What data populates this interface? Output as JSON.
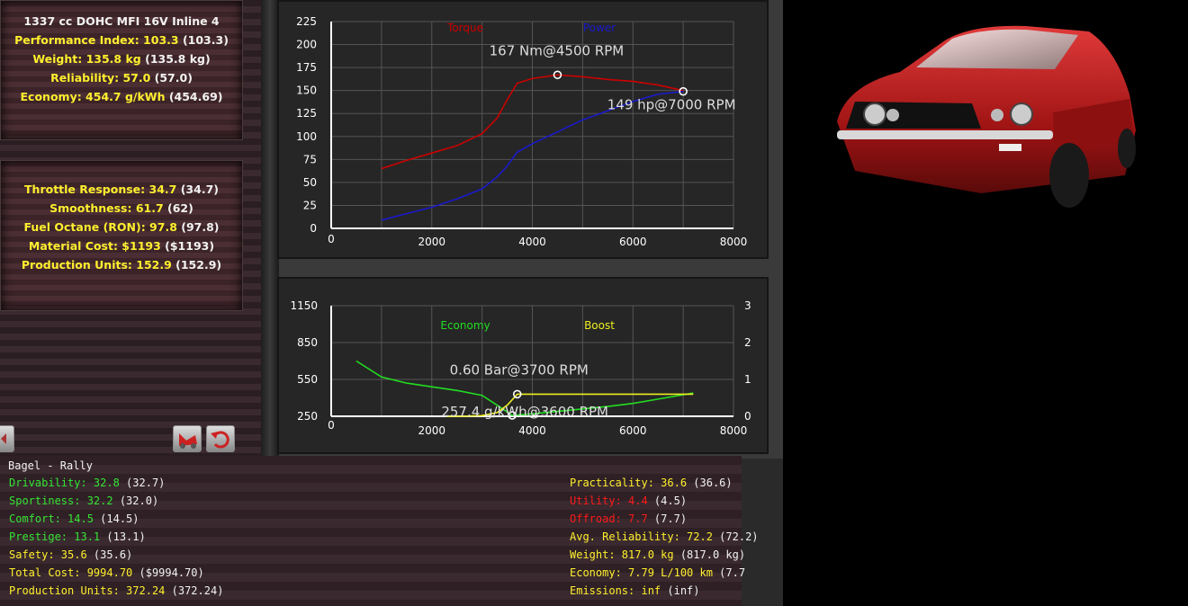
{
  "engine_panel": {
    "title": "1337 cc DOHC MFI 16V Inline 4",
    "perf_label": "Performance Index: 103.3",
    "perf_paren": " (103.3)",
    "weight_label": "Weight: 135.8 kg",
    "weight_paren": " (135.8 kg)",
    "rel_label": "Reliability: 57.0",
    "rel_paren": " (57.0)",
    "econ_label": "Economy: 454.7 g/kWh",
    "econ_paren": " (454.69)"
  },
  "engine_panel2": {
    "throttle_label": "Throttle Response: 34.7",
    "throttle_paren": " (34.7)",
    "smooth_label": "Smoothness: 61.7",
    "smooth_paren": " (62)",
    "octane_label": "Fuel Octane (RON): 97.8",
    "octane_paren": " (97.8)",
    "cost_label": "Material Cost: $1193",
    "cost_paren": " ($1193)",
    "prod_label": "Production Units: 152.9",
    "prod_paren": " (152.9)"
  },
  "chart_data": [
    {
      "type": "line",
      "title": "",
      "xlabel": "",
      "ylabel": "",
      "xlim": [
        0,
        8000
      ],
      "ylim": [
        0,
        225
      ],
      "x_ticks": [
        "0",
        "2000",
        "4000",
        "6000",
        "8000"
      ],
      "y_ticks": [
        "0",
        "25",
        "50",
        "75",
        "100",
        "125",
        "150",
        "175",
        "200",
        "225"
      ],
      "grid": true,
      "legend_position": "top",
      "colors": {
        "Torque": "#cc0000",
        "Power": "#1a1acc"
      },
      "series": [
        {
          "name": "Torque",
          "x": [
            1000,
            1500,
            2000,
            2500,
            3000,
            3300,
            3500,
            3700,
            4000,
            4500,
            5000,
            5500,
            6000,
            6500,
            7000
          ],
          "values": [
            65,
            74,
            82,
            90,
            103,
            120,
            140,
            158,
            163,
            167,
            165,
            162,
            160,
            156,
            150
          ]
        },
        {
          "name": "Power",
          "x": [
            1000,
            1500,
            2000,
            2500,
            3000,
            3300,
            3500,
            3700,
            4000,
            4500,
            5000,
            5500,
            6000,
            6500,
            7000
          ],
          "values": [
            9,
            16,
            23,
            32,
            43,
            56,
            68,
            83,
            92,
            105,
            118,
            128,
            138,
            146,
            149
          ]
        }
      ],
      "annotations": [
        {
          "text": "167 Nm@4500 RPM",
          "x": 4500,
          "y": 167
        },
        {
          "text": "149 hp@7000 RPM",
          "x": 7000,
          "y": 149
        }
      ]
    },
    {
      "type": "line",
      "title": "",
      "xlabel": "",
      "ylabel": "",
      "xlim": [
        0,
        8000
      ],
      "ylim": [
        250,
        1150
      ],
      "y2lim": [
        0,
        3
      ],
      "x_ticks": [
        "0",
        "2000",
        "4000",
        "6000",
        "8000"
      ],
      "y_ticks": [
        "250",
        "550",
        "850",
        "1150"
      ],
      "y2_ticks": [
        "0",
        "1",
        "2",
        "3"
      ],
      "grid": true,
      "legend_position": "top",
      "colors": {
        "Economy": "#22dd22",
        "Boost": "#eeee22"
      },
      "series": [
        {
          "name": "Economy",
          "axis": "left",
          "x": [
            500,
            1000,
            1500,
            2000,
            2500,
            3000,
            3300,
            3600,
            4000,
            4500,
            5000,
            5500,
            6000,
            6500,
            7000,
            7200
          ],
          "values": [
            700,
            570,
            520,
            490,
            460,
            420,
            340,
            258,
            270,
            290,
            310,
            330,
            355,
            390,
            425,
            440
          ]
        },
        {
          "name": "Boost",
          "axis": "right",
          "x": [
            2300,
            2600,
            3000,
            3300,
            3500,
            3700,
            4000,
            5000,
            6000,
            7000,
            7200
          ],
          "values": [
            0,
            0,
            0.02,
            0.1,
            0.3,
            0.6,
            0.6,
            0.6,
            0.6,
            0.6,
            0.6
          ]
        }
      ],
      "annotations": [
        {
          "text": "0.60 Bar@3700 RPM",
          "x": 3700,
          "y2": 0.6
        },
        {
          "text": "257.4 g/kWh@3600 RPM",
          "x": 3600,
          "y": 257.4
        }
      ]
    }
  ],
  "bottom_panel": {
    "title": "Bagel - Rally",
    "left": [
      {
        "label": "Drivability: 32.8",
        "paren": " (32.7)"
      },
      {
        "label": "Sportiness: 32.2",
        "paren": " (32.0)"
      },
      {
        "label": "Comfort: 14.5",
        "paren": " (14.5)"
      },
      {
        "label": "Prestige: 13.1",
        "paren": " (13.1)"
      },
      {
        "label": "Safety: 35.6",
        "paren": " (35.6)"
      },
      {
        "label": "Total Cost: 9994.70",
        "paren": " ($9994.70)"
      },
      {
        "label": "Production Units: 372.24",
        "paren": " (372.24)"
      }
    ],
    "right": [
      {
        "label": "Practicality: 36.6",
        "paren": " (36.6)"
      },
      {
        "label": "Utility: 4.4",
        "paren": " (4.5)"
      },
      {
        "label": "Offroad: 7.7",
        "paren": " (7.7)"
      },
      {
        "label": "Avg. Reliability: 72.2",
        "paren": " (72.2)"
      },
      {
        "label": "Weight: 817.0 kg",
        "paren": " (817.0 kg)"
      },
      {
        "label": "Economy: 7.79 L/100 km",
        "paren": " (7.7"
      },
      {
        "label": "Emissions: inf",
        "paren": " (inf)"
      }
    ]
  },
  "buttons": {
    "left_arrow": "arrow-left-icon",
    "car_button": "car-icon",
    "undo_button": "undo-icon"
  }
}
